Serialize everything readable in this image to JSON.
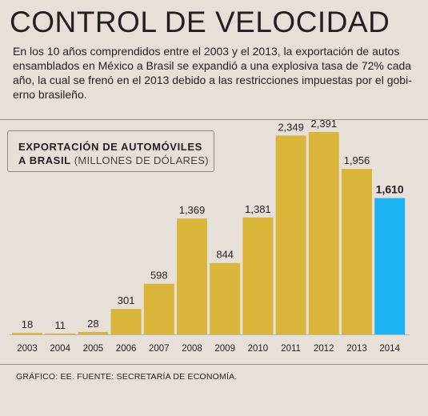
{
  "title": "CONTROL DE VELOCIDAD",
  "intro": "En los 10 años comprendidos entre el 2003 y el 2013, la exportación de autos ensamblados en México a Brasil se expandió a una explosiva tasa de 72% cada año, la cual se frenó en el 2013 debido a las restricciones impuestas por el gobi-erno brasileño.",
  "legend": {
    "line1": "EXPORTACIÓN  DE AUTOMÓVILES",
    "line2": "A BRASIL",
    "unit": "(MILLONES DE DÓLARES)"
  },
  "source": "GRÁFICO: EE. FUENTE: SECRETARÍA DE ECONOMÍA.",
  "colors": {
    "bar": "#d9b63a",
    "highlight": "#1ab3ef",
    "background": "#e6e0d8"
  },
  "chart_data": {
    "type": "bar",
    "title": "EXPORTACIÓN  DE AUTOMÓVILES A BRASIL",
    "ylabel": "(MILLONES DE DÓLARES)",
    "categories": [
      "2003",
      "2004",
      "2005",
      "2006",
      "2007",
      "2008",
      "2009",
      "2010",
      "2011",
      "2012",
      "2013",
      "2014"
    ],
    "values": [
      18,
      11,
      28,
      301,
      598,
      1369,
      844,
      1381,
      2349,
      2391,
      1956,
      1610
    ],
    "value_labels": [
      "18",
      "11",
      "28",
      "301",
      "598",
      "1,369",
      "844",
      "1,381",
      "2,349",
      "2,391",
      "1,956",
      "1,610"
    ],
    "highlight_index": 11,
    "ylim": [
      0,
      2391
    ],
    "grid": false
  }
}
